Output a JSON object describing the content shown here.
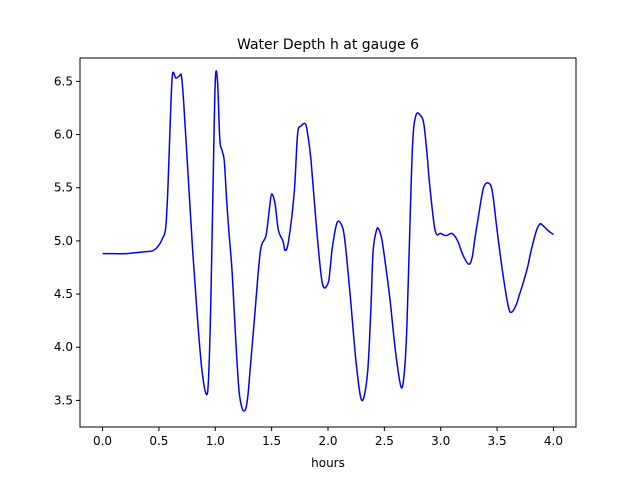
{
  "chart_data": {
    "type": "line",
    "title": "Water Depth h at gauge 6",
    "xlabel": "hours",
    "ylabel": "",
    "xlim": [
      -0.2,
      4.2
    ],
    "ylim": [
      3.25,
      6.72
    ],
    "grid": false,
    "legend": "none",
    "xticks": [
      0.0,
      0.5,
      1.0,
      1.5,
      2.0,
      2.5,
      3.0,
      3.5,
      4.0
    ],
    "xtick_labels": [
      "0.0",
      "0.5",
      "1.0",
      "1.5",
      "2.0",
      "2.5",
      "3.0",
      "3.5",
      "4.0"
    ],
    "yticks": [
      3.5,
      4.0,
      4.5,
      5.0,
      5.5,
      6.0,
      6.5
    ],
    "ytick_labels": [
      "3.5",
      "4.0",
      "4.5",
      "5.0",
      "5.5",
      "6.0",
      "6.5"
    ],
    "series": [
      {
        "color": "#0000ff",
        "x": [
          0.0,
          0.1,
          0.2,
          0.3,
          0.4,
          0.45,
          0.5,
          0.53,
          0.56,
          0.58,
          0.6,
          0.62,
          0.65,
          0.68,
          0.7,
          0.72,
          0.76,
          0.8,
          0.84,
          0.88,
          0.92,
          0.94,
          0.96,
          0.98,
          1.0,
          1.02,
          1.04,
          1.06,
          1.08,
          1.1,
          1.12,
          1.15,
          1.18,
          1.21,
          1.24,
          1.27,
          1.29,
          1.31,
          1.35,
          1.4,
          1.45,
          1.48,
          1.5,
          1.53,
          1.56,
          1.6,
          1.62,
          1.65,
          1.7,
          1.73,
          1.76,
          1.8,
          1.82,
          1.85,
          1.9,
          1.95,
          2.0,
          2.02,
          2.04,
          2.08,
          2.12,
          2.15,
          2.2,
          2.25,
          2.3,
          2.35,
          2.38,
          2.4,
          2.43,
          2.45,
          2.48,
          2.52,
          2.55,
          2.6,
          2.65,
          2.68,
          2.7,
          2.72,
          2.75,
          2.78,
          2.82,
          2.85,
          2.88,
          2.9,
          2.95,
          3.0,
          3.05,
          3.1,
          3.15,
          3.2,
          3.25,
          3.28,
          3.3,
          3.33,
          3.38,
          3.43,
          3.46,
          3.5,
          3.55,
          3.6,
          3.63,
          3.67,
          3.7,
          3.73,
          3.77,
          3.8,
          3.85,
          3.88,
          3.9,
          3.93,
          3.96,
          4.0
        ],
        "y": [
          4.88,
          4.88,
          4.88,
          4.89,
          4.9,
          4.91,
          4.96,
          5.02,
          5.12,
          5.5,
          6.1,
          6.56,
          6.53,
          6.55,
          6.55,
          6.3,
          5.6,
          4.9,
          4.3,
          3.8,
          3.56,
          3.7,
          4.4,
          5.5,
          6.5,
          6.5,
          5.96,
          5.85,
          5.75,
          5.4,
          5.1,
          4.7,
          4.1,
          3.6,
          3.42,
          3.42,
          3.55,
          3.8,
          4.3,
          4.9,
          5.05,
          5.3,
          5.44,
          5.35,
          5.1,
          5.0,
          4.91,
          5.0,
          5.45,
          6.0,
          6.08,
          6.1,
          6.0,
          5.75,
          5.1,
          4.6,
          4.6,
          4.75,
          4.95,
          5.17,
          5.15,
          5.0,
          4.45,
          3.85,
          3.5,
          3.75,
          4.35,
          4.9,
          5.1,
          5.11,
          5.0,
          4.7,
          4.45,
          3.95,
          3.62,
          3.8,
          4.2,
          4.9,
          5.9,
          6.18,
          6.18,
          6.1,
          5.8,
          5.55,
          5.1,
          5.07,
          5.05,
          5.07,
          5.0,
          4.86,
          4.78,
          4.85,
          5.0,
          5.2,
          5.5,
          5.54,
          5.45,
          5.1,
          4.7,
          4.38,
          4.33,
          4.4,
          4.5,
          4.6,
          4.75,
          4.9,
          5.1,
          5.16,
          5.15,
          5.12,
          5.09,
          5.06
        ]
      }
    ]
  }
}
